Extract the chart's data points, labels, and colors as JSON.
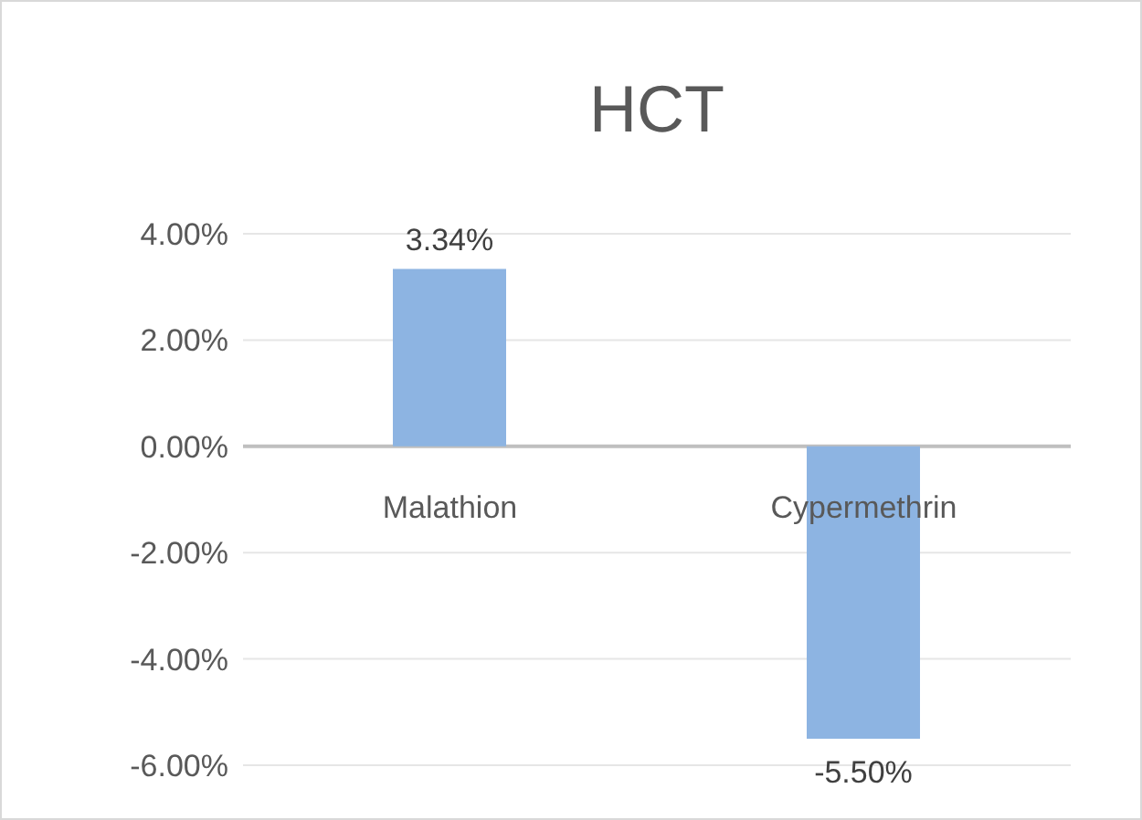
{
  "chart_data": {
    "type": "bar",
    "title": "HCT",
    "categories": [
      "Malathion",
      "Cypermethrin"
    ],
    "values": [
      3.34,
      -5.5
    ],
    "color": "#8db4e2",
    "value_labels": [
      "3.34%",
      "-5.50%"
    ],
    "ylim": [
      -6,
      4
    ],
    "yticks": [
      {
        "value": -6,
        "label": "-6.00%"
      },
      {
        "value": -4,
        "label": "-4.00%"
      },
      {
        "value": -2,
        "label": "-2.00%"
      },
      {
        "value": 0,
        "label": "0.00%"
      },
      {
        "value": 2,
        "label": "2.00%"
      },
      {
        "value": 4,
        "label": "4.00%"
      }
    ],
    "grid": "y",
    "legend": false
  }
}
